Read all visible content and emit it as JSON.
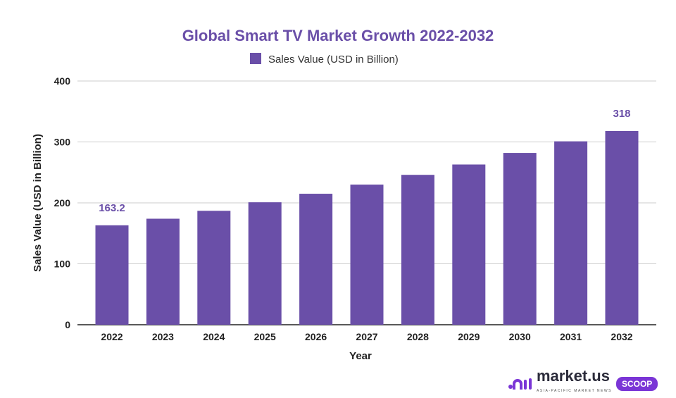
{
  "chart_data": {
    "type": "bar",
    "title": "Global Smart TV Market Growth 2022-2032",
    "legend": {
      "entries": [
        "Sales Value (USD in Billion)"
      ],
      "placement": "top"
    },
    "xlabel": "Year",
    "ylabel": "Sales Value (USD in Billion)",
    "ylim": [
      0,
      400
    ],
    "yticks": [
      0,
      100,
      200,
      300,
      400
    ],
    "grid": true,
    "categories": [
      "2022",
      "2023",
      "2024",
      "2025",
      "2026",
      "2027",
      "2028",
      "2029",
      "2030",
      "2031",
      "2032"
    ],
    "series": [
      {
        "name": "Sales Value (USD in Billion)",
        "values": [
          163.2,
          174,
          187,
          201,
          215,
          230,
          246,
          263,
          282,
          301,
          318
        ]
      }
    ],
    "data_labels": [
      {
        "category": "2022",
        "text": "163.2"
      },
      {
        "category": "2032",
        "text": "318"
      }
    ],
    "colors": {
      "bar": "#6a4fa8",
      "title": "#6a4fa8",
      "grid": "#cccccc"
    }
  },
  "branding": {
    "logo": "market.us",
    "tagline": "ASIA-PACIFIC MARKET NEWS",
    "badge": "SCOOP"
  }
}
